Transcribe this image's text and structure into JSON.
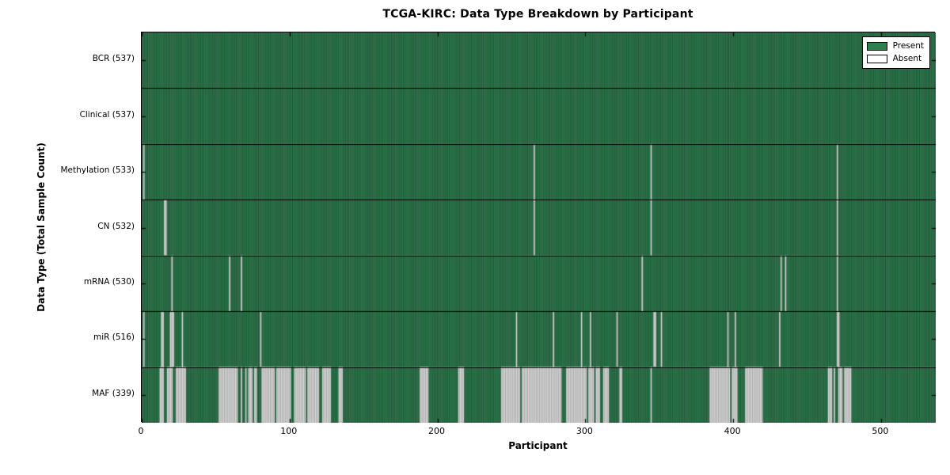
{
  "figure": {
    "background": "#ffffff"
  },
  "chart_data": {
    "type": "heatmap",
    "title": "TCGA-KIRC: Data Type Breakdown by Participant",
    "xlabel": "Participant",
    "ylabel": "Data Type (Total Sample Count)",
    "n_participants": 537,
    "x_ticks": [
      0,
      100,
      200,
      300,
      400,
      500
    ],
    "xlim": [
      0,
      537
    ],
    "grid": false,
    "legend_position": "upper right",
    "colors": {
      "present": "#2f7e50",
      "present_edge": "#1b5c38",
      "absent": "#e9e9e9",
      "absent_edge": "#9a9a9a",
      "separator": "#000000",
      "axis": "#000000"
    },
    "legend": [
      {
        "label": "Present",
        "swatch": "present"
      },
      {
        "label": "Absent",
        "swatch": "absent"
      }
    ],
    "rows": [
      {
        "label": "BCR (537)",
        "name": "BCR",
        "total": 537,
        "absent_ranges": []
      },
      {
        "label": "Clinical (537)",
        "name": "Clinical",
        "total": 537,
        "absent_ranges": []
      },
      {
        "label": "Methylation (533)",
        "name": "Methylation",
        "total": 533,
        "absent_ranges": [
          [
            1,
            1
          ],
          [
            265,
            265
          ],
          [
            344,
            344
          ],
          [
            470,
            470
          ]
        ]
      },
      {
        "label": "CN (532)",
        "name": "CN",
        "total": 532,
        "absent_ranges": [
          [
            15,
            16
          ],
          [
            265,
            265
          ],
          [
            344,
            344
          ],
          [
            470,
            470
          ]
        ]
      },
      {
        "label": "mRNA (530)",
        "name": "mRNA",
        "total": 530,
        "absent_ranges": [
          [
            20,
            20
          ],
          [
            59,
            59
          ],
          [
            67,
            67
          ],
          [
            338,
            338
          ],
          [
            432,
            432
          ],
          [
            435,
            435
          ],
          [
            470,
            470
          ]
        ]
      },
      {
        "label": "miR (516)",
        "name": "miR",
        "total": 516,
        "absent_ranges": [
          [
            1,
            1
          ],
          [
            13,
            14
          ],
          [
            19,
            21
          ],
          [
            27,
            27
          ],
          [
            80,
            80
          ],
          [
            253,
            253
          ],
          [
            278,
            278
          ],
          [
            297,
            297
          ],
          [
            303,
            303
          ],
          [
            321,
            321
          ],
          [
            346,
            347
          ],
          [
            351,
            351
          ],
          [
            396,
            396
          ],
          [
            401,
            401
          ],
          [
            431,
            431
          ],
          [
            470,
            471
          ]
        ]
      },
      {
        "label": "MAF (339)",
        "name": "MAF",
        "total": 339,
        "absent_ranges": [
          [
            12,
            14
          ],
          [
            17,
            20
          ],
          [
            23,
            29
          ],
          [
            52,
            64
          ],
          [
            67,
            67
          ],
          [
            70,
            70
          ],
          [
            72,
            74
          ],
          [
            76,
            77
          ],
          [
            81,
            89
          ],
          [
            91,
            100
          ],
          [
            103,
            110
          ],
          [
            112,
            119
          ],
          [
            122,
            127
          ],
          [
            133,
            135
          ],
          [
            188,
            193
          ],
          [
            214,
            217
          ],
          [
            243,
            255
          ],
          [
            257,
            283
          ],
          [
            287,
            300
          ],
          [
            302,
            305
          ],
          [
            307,
            309
          ],
          [
            312,
            315
          ],
          [
            323,
            324
          ],
          [
            344,
            344
          ],
          [
            384,
            397
          ],
          [
            399,
            402
          ],
          [
            408,
            419
          ],
          [
            464,
            466
          ],
          [
            468,
            468
          ],
          [
            471,
            473
          ],
          [
            475,
            479
          ]
        ]
      }
    ]
  }
}
